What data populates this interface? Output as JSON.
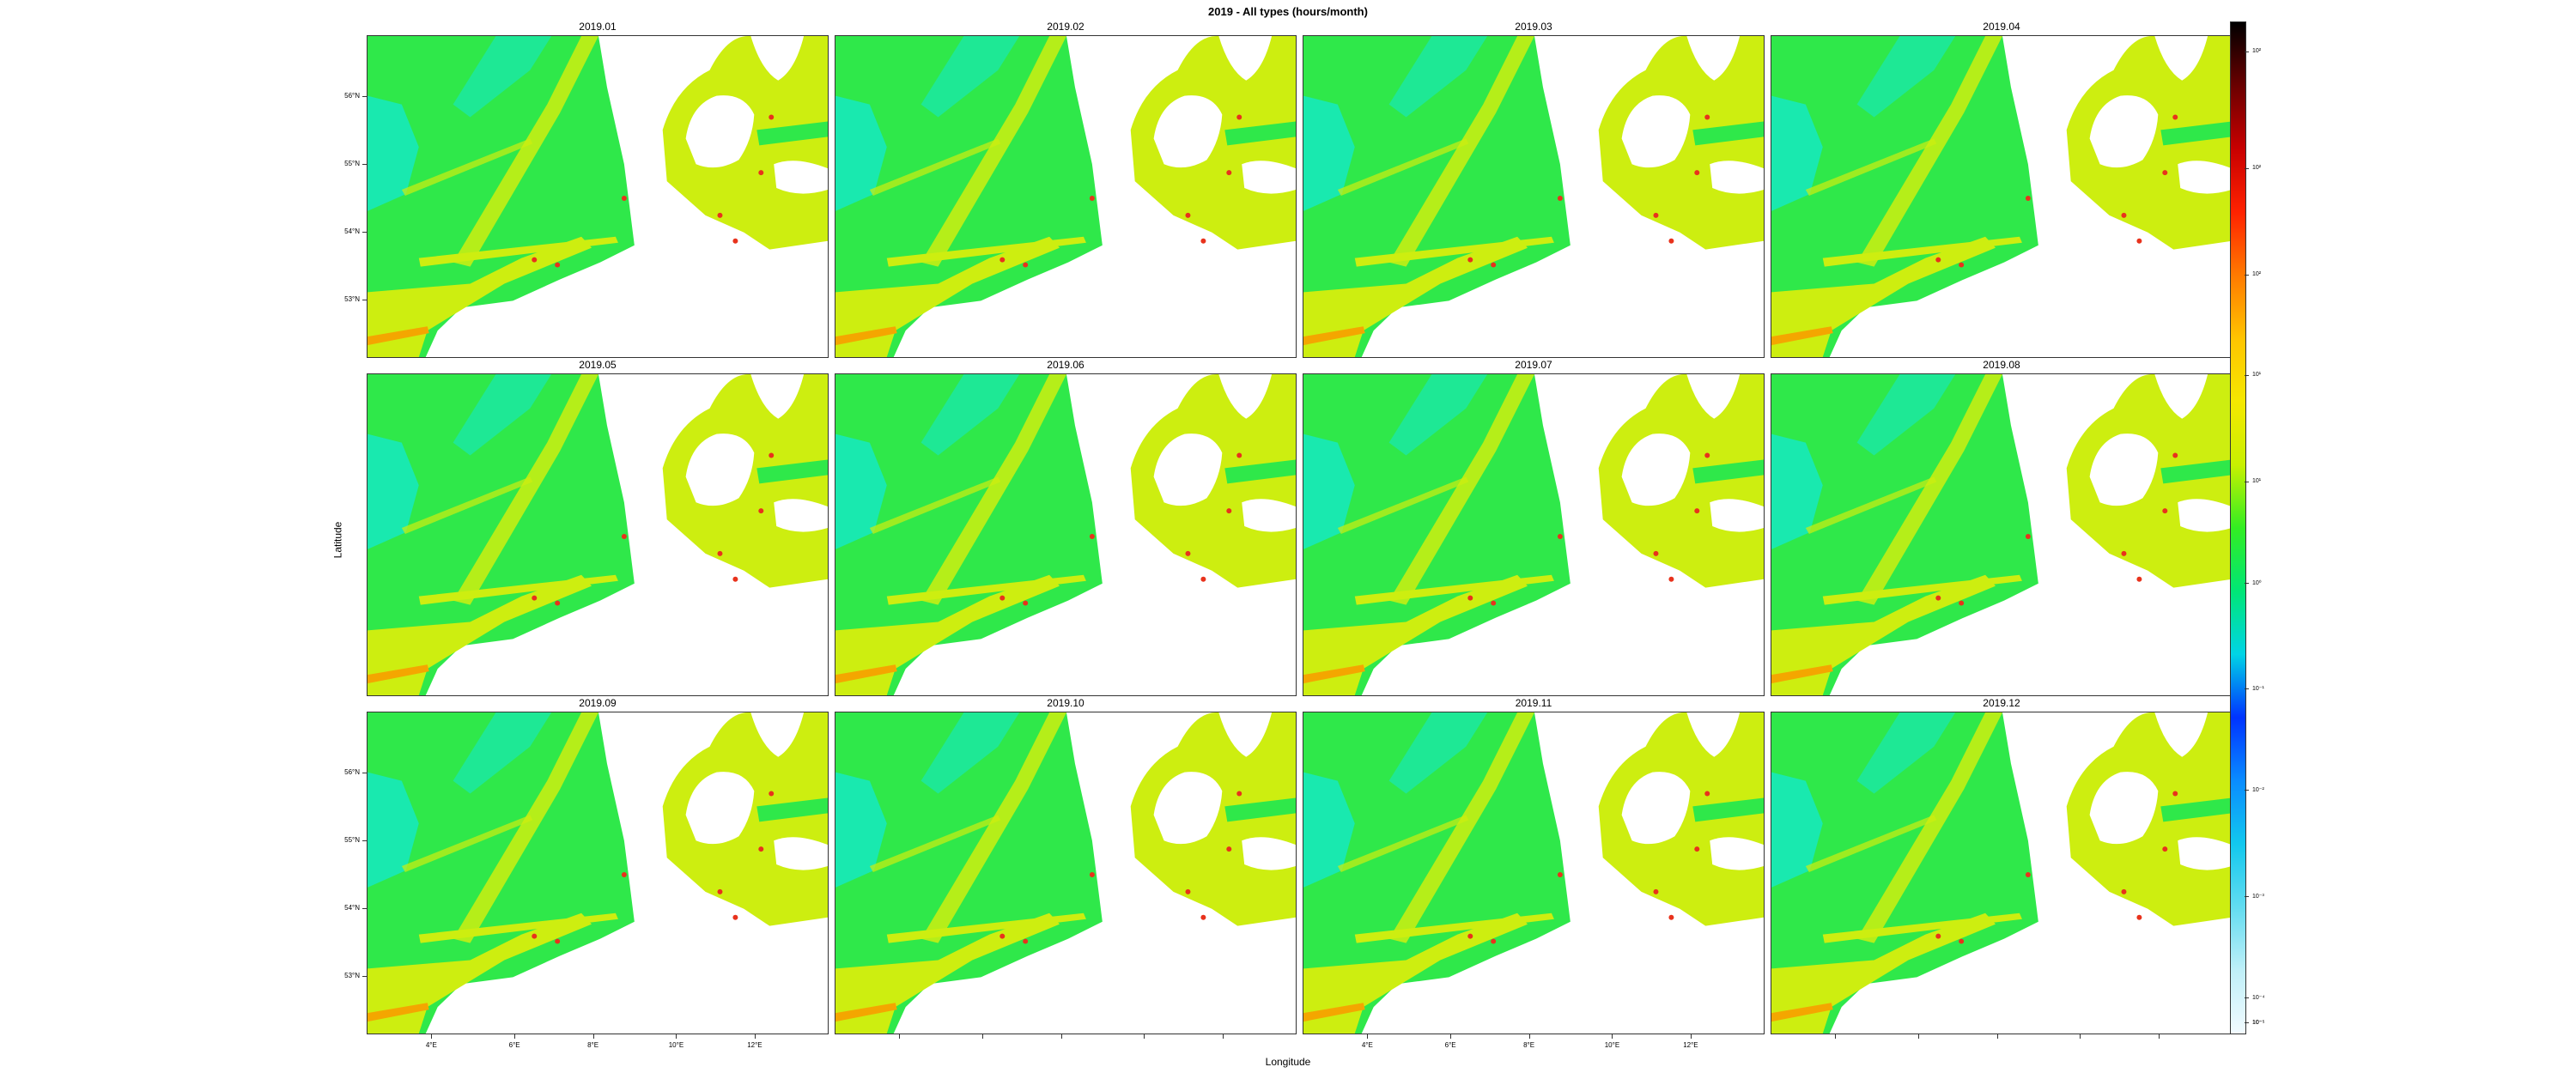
{
  "title": "2019 - All types (hours/month)",
  "axes": {
    "xlabel": "Longitude",
    "ylabel": "Latitude",
    "y_ticks": [
      "56°N",
      "55°N",
      "54°N",
      "53°N"
    ],
    "x_ticks": [
      "4°E",
      "6°E",
      "8°E",
      "10°E",
      "12°E"
    ]
  },
  "panels": [
    "2019.01",
    "2019.02",
    "2019.03",
    "2019.04",
    "2019.05",
    "2019.06",
    "2019.07",
    "2019.08",
    "2019.09",
    "2019.10",
    "2019.11",
    "2019.12"
  ],
  "colorbar": {
    "scale": "log",
    "labels": [
      "10²",
      "10²",
      "10²",
      "10¹",
      "10¹",
      "10⁰",
      "10⁻¹",
      "10⁻²",
      "10⁻³",
      "10⁻⁴",
      "10⁻⁵",
      "10⁻⁵"
    ],
    "colors": [
      "#f2fbff",
      "#bfeff8",
      "#62dcf0",
      "#12c8ee",
      "#0a8cff",
      "#0033ff",
      "#00d4e6",
      "#00e676",
      "#33ee22",
      "#c8f000",
      "#f5e800",
      "#ffc400",
      "#ff7a00",
      "#ff2200",
      "#c80000",
      "#6a0000",
      "#000000"
    ]
  },
  "map_colors": {
    "water": "#ffffff",
    "low": "#14e8c8",
    "mid": "#2fe84a",
    "high": "#cdee10",
    "peak": "#f4a600",
    "hot": "#e8321c"
  }
}
